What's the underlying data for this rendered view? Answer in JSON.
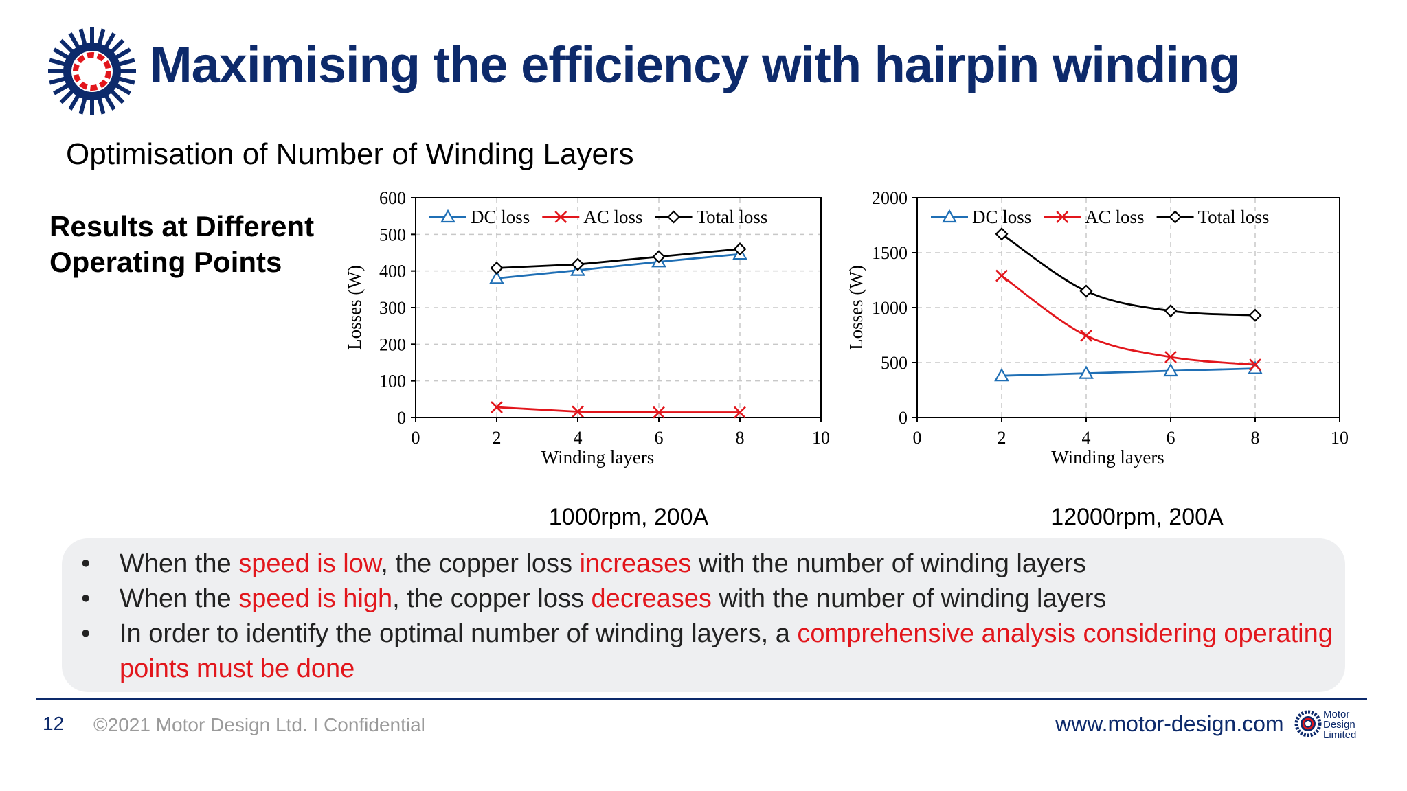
{
  "slide": {
    "title": "Maximising the efficiency with hairpin winding",
    "subtitle": "Optimisation of Number of Winding Layers",
    "side_label_line1": "Results at Different",
    "side_label_line2": "Operating Points",
    "colors": {
      "brand_navy": "#0d2a6b",
      "accent_red": "#e2161c",
      "panel_bg": "#eeeff1"
    },
    "logo_icon": "motor-stator-icon"
  },
  "bullets": [
    {
      "parts": [
        {
          "text": "When the ",
          "highlight": false
        },
        {
          "text": "speed is low",
          "highlight": true
        },
        {
          "text": ", the copper loss ",
          "highlight": false
        },
        {
          "text": "increases",
          "highlight": true
        },
        {
          "text": " with the number of winding layers",
          "highlight": false
        }
      ]
    },
    {
      "parts": [
        {
          "text": "When the ",
          "highlight": false
        },
        {
          "text": "speed is high",
          "highlight": true
        },
        {
          "text": ", the copper loss ",
          "highlight": false
        },
        {
          "text": "decreases",
          "highlight": true
        },
        {
          "text": " with the number of winding layers",
          "highlight": false
        }
      ]
    },
    {
      "parts": [
        {
          "text": "In order to identify the optimal number of winding layers, a ",
          "highlight": false
        },
        {
          "text": "comprehensive analysis considering operating points must be done",
          "highlight": true
        }
      ]
    }
  ],
  "footer": {
    "page_number": "12",
    "copyright": "©2021 Motor Design Ltd. I Confidential",
    "url": "www.motor-design.com",
    "logo_text": [
      "Motor",
      "Design",
      "Limited"
    ]
  },
  "chart_data": [
    {
      "type": "line",
      "caption": "1000rpm, 200A",
      "xlabel": "Winding layers",
      "ylabel": "Losses (W)",
      "xlim": [
        0,
        10
      ],
      "ylim": [
        0,
        600
      ],
      "xticks": [
        0,
        2,
        4,
        6,
        8,
        10
      ],
      "yticks": [
        0,
        100,
        200,
        300,
        400,
        500,
        600
      ],
      "grid": true,
      "smooth": false,
      "legend": "top",
      "x": [
        2,
        4,
        6,
        8
      ],
      "series": [
        {
          "name": "DC loss",
          "values": [
            380,
            402,
            425,
            446
          ],
          "color": "#1f6fb5",
          "marker": "triangle"
        },
        {
          "name": "AC loss",
          "values": [
            28,
            16,
            14,
            14
          ],
          "color": "#e2161c",
          "marker": "x"
        },
        {
          "name": "Total loss",
          "values": [
            408,
            418,
            439,
            460
          ],
          "color": "#000000",
          "marker": "diamond"
        }
      ]
    },
    {
      "type": "line",
      "caption": "12000rpm, 200A",
      "xlabel": "Winding layers",
      "ylabel": "Losses (W)",
      "xlim": [
        0,
        10
      ],
      "ylim": [
        0,
        2000
      ],
      "xticks": [
        0,
        2,
        4,
        6,
        8,
        10
      ],
      "yticks": [
        0,
        500,
        1000,
        1500,
        2000
      ],
      "grid": true,
      "smooth": true,
      "legend": "top",
      "x": [
        2,
        4,
        6,
        8
      ],
      "series": [
        {
          "name": "DC loss",
          "values": [
            380,
            402,
            425,
            446
          ],
          "color": "#1f6fb5",
          "marker": "triangle"
        },
        {
          "name": "AC loss",
          "values": [
            1290,
            745,
            550,
            480
          ],
          "color": "#e2161c",
          "marker": "x"
        },
        {
          "name": "Total loss",
          "values": [
            1670,
            1150,
            970,
            930
          ],
          "color": "#000000",
          "marker": "diamond"
        }
      ]
    }
  ]
}
